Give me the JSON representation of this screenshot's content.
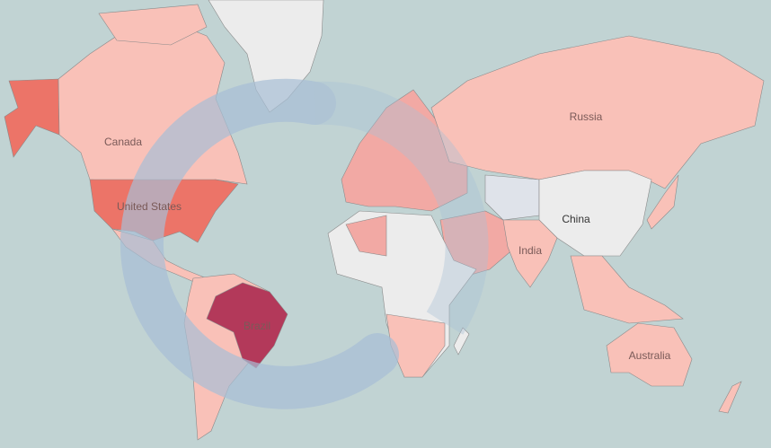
{
  "map": {
    "labels": {
      "canada": "Canada",
      "united_states": "United States",
      "brazil": "Brazil",
      "russia": "Russia",
      "china": "China",
      "india": "India",
      "australia": "Australia"
    },
    "colors": {
      "ocean": "#c1d3d3",
      "no_data": "#ececec",
      "low": "#f9c1b8",
      "medium": "#f0867a",
      "high": "#e9706a",
      "highest": "#b3395a",
      "loading_spinner": "#a8bfd6"
    },
    "loading": true
  }
}
